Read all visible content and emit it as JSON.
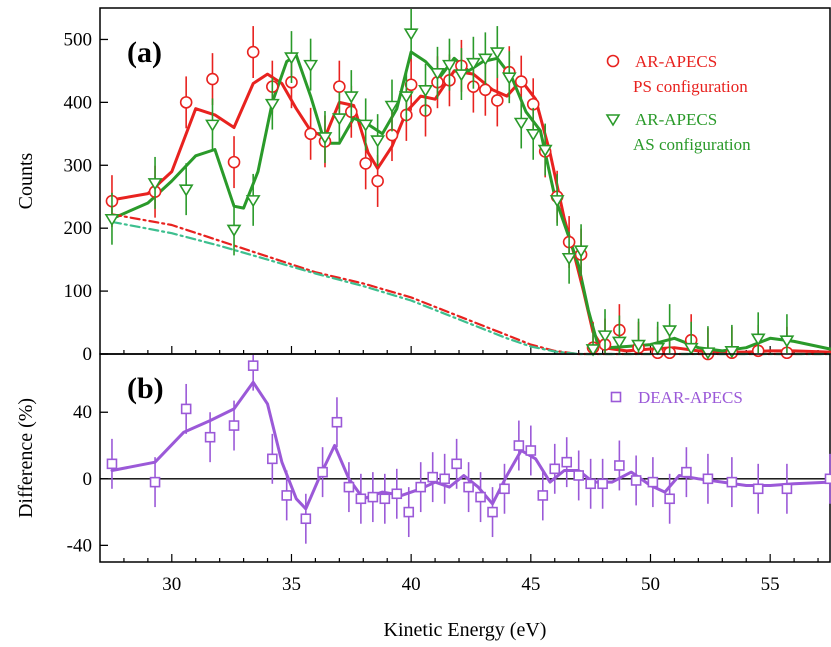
{
  "chart_data": [
    {
      "panel": "(a)",
      "type": "line",
      "ylabel": "Counts",
      "xlabel": "Kinetic Energy (eV)",
      "xlim": [
        27,
        57.5
      ],
      "ylim": [
        0,
        550
      ],
      "x_ticks": [
        30,
        35,
        40,
        45,
        50,
        55
      ],
      "y_ticks": [
        0,
        100,
        200,
        300,
        400,
        500
      ],
      "grid": false,
      "legend_position": "top-right",
      "legend": [
        {
          "label": "AR-APECS",
          "sublabel": "PS configuration",
          "marker": "circle",
          "color": "#e8221f"
        },
        {
          "label": "AR-APECS",
          "sublabel": "AS configuration",
          "marker": "triangle-down",
          "color": "#2a9a2a"
        }
      ],
      "series": [
        {
          "marker": "circle",
          "color": "#e8221f",
          "x": [
            27.5,
            29.3,
            30.6,
            31.7,
            32.6,
            33.4,
            34.2,
            35.0,
            35.8,
            36.4,
            37.0,
            37.5,
            38.1,
            38.6,
            39.2,
            39.8,
            40.0,
            40.6,
            41.1,
            41.6,
            42.1,
            42.6,
            43.1,
            43.6,
            44.1,
            44.6,
            45.1,
            45.6,
            46.1,
            46.6,
            47.1,
            47.6,
            48.1,
            48.7,
            49.5,
            50.3,
            50.8,
            51.7,
            52.4,
            53.4,
            54.5,
            55.7
          ],
          "y": [
            243,
            258,
            400,
            437,
            305,
            480,
            425,
            432,
            350,
            338,
            425,
            385,
            303,
            275,
            348,
            380,
            428,
            387,
            432,
            435,
            458,
            425,
            420,
            403,
            448,
            433,
            397,
            322,
            250,
            178,
            158,
            10,
            15,
            38,
            10,
            2,
            2,
            22,
            0,
            2,
            5,
            2
          ]
        },
        {
          "marker": "triangle-down",
          "color": "#2a9a2a",
          "x": [
            27.5,
            29.3,
            30.6,
            31.7,
            32.6,
            33.4,
            34.2,
            35.0,
            35.8,
            36.4,
            37.0,
            37.5,
            38.1,
            38.6,
            39.2,
            39.8,
            40.0,
            40.6,
            41.1,
            41.6,
            42.1,
            42.6,
            43.1,
            43.6,
            44.1,
            44.6,
            45.1,
            45.6,
            46.1,
            46.6,
            47.1,
            47.6,
            48.1,
            48.7,
            49.5,
            50.3,
            50.8,
            51.7,
            52.4,
            53.4,
            54.5,
            55.7
          ],
          "y": [
            215,
            272,
            262,
            365,
            198,
            245,
            398,
            472,
            460,
            345,
            375,
            410,
            365,
            340,
            395,
            410,
            510,
            420,
            447,
            460,
            445,
            463,
            470,
            480,
            440,
            368,
            350,
            325,
            245,
            153,
            165,
            8,
            30,
            20,
            15,
            10,
            38,
            10,
            3,
            5,
            25,
            22
          ]
        },
        {
          "name": "PS fit",
          "style": "solid",
          "color": "#e8221f",
          "x": [
            27.5,
            29,
            30,
            31,
            31.8,
            32.6,
            33.4,
            34,
            34.6,
            35.2,
            35.8,
            36.4,
            37,
            37.6,
            38.2,
            38.6,
            39.2,
            39.8,
            40.4,
            41,
            41.8,
            42.6,
            43.4,
            44,
            44.6,
            45.2,
            45.8,
            46.4,
            46.8,
            47.2,
            47.6,
            48,
            49,
            50,
            51,
            52,
            53,
            54,
            55,
            56,
            57.5
          ],
          "y": [
            245,
            255,
            290,
            390,
            380,
            360,
            430,
            445,
            430,
            390,
            355,
            345,
            400,
            395,
            320,
            295,
            330,
            385,
            410,
            405,
            450,
            445,
            420,
            410,
            435,
            405,
            320,
            215,
            160,
            100,
            35,
            10,
            5,
            8,
            10,
            5,
            3,
            3,
            5,
            5,
            3
          ]
        },
        {
          "name": "AS fit",
          "style": "solid",
          "color": "#2a9a2a",
          "x": [
            27.5,
            29,
            30,
            31,
            31.8,
            32.6,
            33,
            33.6,
            34.2,
            34.8,
            35.2,
            35.8,
            36.4,
            37,
            37.6,
            38.2,
            38.8,
            39.4,
            40,
            40.6,
            41.2,
            41.8,
            42.4,
            43,
            43.6,
            44.2,
            44.8,
            45.4,
            46,
            46.6,
            47,
            47.4,
            47.8,
            48.2,
            49,
            50,
            51,
            52,
            53,
            54,
            55,
            56,
            57.5
          ],
          "y": [
            215,
            240,
            275,
            315,
            325,
            235,
            232,
            290,
            400,
            465,
            475,
            410,
            335,
            335,
            375,
            365,
            350,
            390,
            480,
            465,
            440,
            470,
            450,
            465,
            470,
            440,
            385,
            355,
            250,
            185,
            140,
            70,
            15,
            10,
            12,
            15,
            25,
            10,
            5,
            10,
            25,
            20,
            8
          ]
        },
        {
          "name": "PS background",
          "style": "dash-dot",
          "color": "#e8221f",
          "x": [
            27.5,
            30,
            32,
            34,
            36,
            38,
            40,
            42,
            44,
            45,
            46,
            47,
            48,
            57.5
          ],
          "y": [
            222,
            205,
            180,
            155,
            130,
            112,
            90,
            60,
            30,
            15,
            5,
            0,
            0,
            0
          ]
        },
        {
          "name": "AS background",
          "style": "dash-dot",
          "color": "#3dbf8f",
          "x": [
            27.5,
            30,
            32,
            34,
            36,
            38,
            40,
            42,
            44,
            45,
            46,
            47,
            48,
            57.5
          ],
          "y": [
            210,
            192,
            172,
            150,
            128,
            108,
            85,
            55,
            25,
            12,
            4,
            0,
            0,
            0
          ]
        }
      ]
    },
    {
      "panel": "(b)",
      "type": "line",
      "ylabel": "Difference (%)",
      "xlabel": "Kinetic Energy (eV)",
      "xlim": [
        27,
        57.5
      ],
      "ylim": [
        -50,
        75
      ],
      "x_ticks": [
        30,
        35,
        40,
        45,
        50,
        55
      ],
      "y_ticks": [
        -40,
        0,
        40
      ],
      "grid": false,
      "legend_position": "top-right",
      "legend": [
        {
          "label": "DEAR-APECS",
          "marker": "square",
          "color": "#9b59d8"
        }
      ],
      "series": [
        {
          "marker": "square",
          "color": "#9b59d8",
          "x": [
            27.5,
            29.3,
            30.6,
            31.6,
            32.6,
            33.4,
            34.2,
            34.8,
            35.6,
            36.3,
            36.9,
            37.4,
            37.9,
            38.4,
            38.9,
            39.4,
            39.9,
            40.4,
            40.9,
            41.4,
            41.9,
            42.4,
            42.9,
            43.4,
            43.9,
            44.5,
            45.0,
            45.5,
            46.0,
            46.5,
            47.0,
            47.5,
            48.0,
            48.7,
            49.4,
            50.1,
            50.8,
            51.5,
            52.4,
            53.4,
            54.5,
            55.7,
            57.5
          ],
          "y": [
            9,
            -2,
            42,
            25,
            32,
            68,
            12,
            -10,
            -24,
            4,
            34,
            -5,
            -12,
            -11,
            -12,
            -9,
            -20,
            -5,
            1,
            0,
            9,
            -5,
            -11,
            -20,
            -6,
            20,
            17,
            -10,
            6,
            10,
            2,
            -3,
            -3,
            8,
            -1,
            -2,
            -12,
            4,
            0,
            -2,
            -6,
            -6,
            0
          ]
        },
        {
          "name": "DEAR fit",
          "style": "solid",
          "color": "#9b59d8",
          "x": [
            27.5,
            29.3,
            30.5,
            31.6,
            32.6,
            33.4,
            34,
            34.6,
            35.2,
            35.6,
            36.2,
            36.8,
            37.4,
            38,
            38.8,
            39.6,
            40.4,
            41,
            41.6,
            42.2,
            42.8,
            43.4,
            44,
            44.6,
            45.2,
            45.8,
            46.4,
            47,
            47.6,
            48.4,
            49.2,
            50,
            50.6,
            51.2,
            52,
            53,
            54,
            55,
            56,
            57.5
          ],
          "y": [
            5,
            10,
            28,
            35,
            42,
            58,
            45,
            10,
            -12,
            -18,
            2,
            20,
            0,
            -12,
            -8,
            -10,
            -6,
            -2,
            -5,
            2,
            -5,
            -15,
            2,
            17,
            12,
            -2,
            5,
            5,
            -2,
            -2,
            4,
            -4,
            -8,
            2,
            0,
            -2,
            -4,
            -4,
            -3,
            -2
          ]
        }
      ]
    }
  ]
}
